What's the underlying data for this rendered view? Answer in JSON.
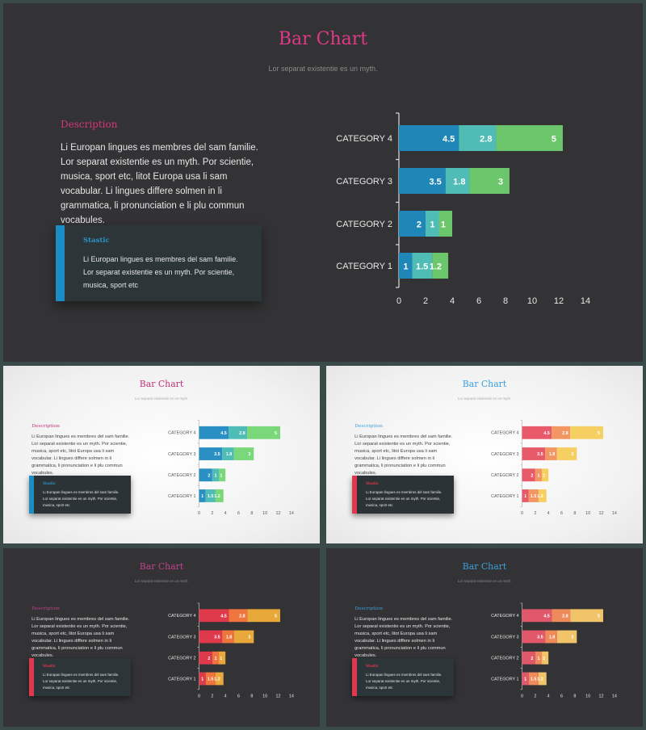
{
  "slides": [
    {
      "id": "main",
      "theme": "dark",
      "title": "Bar Chart",
      "subtitle": "Lor separat existentie es un myth.",
      "description_title": "Description",
      "description": "Li Europan lingues es membres del sam familie. Lor separat existentie es un myth. Por scientie, musica, sport etc, litot Europa usa li sam vocabular. Li lingues differe solmen in li grammatica, li pronunciation e li plu commun vocabules.",
      "stat_title": "Stastic",
      "stat_body": "Li Europan lingues es membres del sam familie. Lor separat existentie es un myth. Por scientie, musica, sport etc",
      "colors": {
        "title": "#e0388a",
        "desc_title": "#d8357f",
        "stat_title": "#2b93c6",
        "accent": "#1b8cc4",
        "series": [
          "#1f87b8",
          "#4fbcb5",
          "#6cc76c"
        ]
      }
    },
    {
      "id": "light-teal",
      "theme": "light",
      "title": "Bar Chart",
      "subtitle": "Lor separat existentie es un myth.",
      "description_title": "Description",
      "description": "Li Europan lingues es membres del sam familie. Lor separat existentie es un myth. Por scientie, musica, sport etc, litot Europa usa li sam vocabular. Li lingues differe solmen in li grammatica, li pronunciation e li plu commun vocabules.",
      "stat_title": "Stastic",
      "stat_body": "Li Europan lingues es membres del sam familie. Lor separat existentie es un myth. Por scientie, musica, sport etc",
      "colors": {
        "title": "#c2347e",
        "desc_title": "#c2347e",
        "stat_title": "#2b93c6",
        "accent": "#1b8cc4",
        "series": [
          "#2a8fc2",
          "#4fbcb5",
          "#7ad77a"
        ]
      }
    },
    {
      "id": "light-red",
      "theme": "light",
      "title": "Bar Chart",
      "subtitle": "Lor separat existentie es un myth.",
      "description_title": "Description",
      "description": "Li Europan lingues es membres del sam familie. Lor separat existentie es un myth. Por scientie, musica, sport etc, litot Europa usa li sam vocabular. Li lingues differe solmen in li grammatica, li pronunciation e li plu commun vocabules.",
      "stat_title": "Stastic",
      "stat_body": "Li Europan lingues es membres del sam familie. Lor separat existentie es un myth. Por scientie, musica, sport etc",
      "colors": {
        "title": "#3aa0d8",
        "desc_title": "#3aa0d8",
        "stat_title": "#e0384f",
        "accent": "#e0384f",
        "series": [
          "#e85a6a",
          "#f29664",
          "#f6cf63"
        ]
      }
    },
    {
      "id": "dark-red",
      "theme": "dark",
      "title": "Bar Chart",
      "subtitle": "Lor separat existentie es un myth.",
      "description_title": "Description",
      "description": "Li Europan lingues es membres del sam familie. Lor separat existentie es un myth. Por scientie, musica, sport etc, litot Europa usa li sam vocabular. Li lingues differe solmen in li grammatica, li pronunciation e li plu commun vocabules.",
      "stat_title": "Stastic",
      "stat_body": "Li Europan lingues es membres del sam familie. Lor separat existentie es un myth. Por scientie, musica, sport etc",
      "colors": {
        "title": "#c0408a",
        "desc_title": "#c0408a",
        "stat_title": "#e0384f",
        "accent": "#e0384f",
        "series": [
          "#de3a4c",
          "#f0743e",
          "#e8a83a"
        ]
      }
    },
    {
      "id": "dark-red-2",
      "theme": "dark",
      "title": "Bar Chart",
      "subtitle": "Lor separat existentie es un myth.",
      "description_title": "Description",
      "description": "Li Europan lingues es membres del sam familie. Lor separat existentie es un myth. Por scientie, musica, sport etc, litot Europa usa li sam vocabular. Li lingues differe solmen in li grammatica, li pronunciation e li plu commun vocabules.",
      "stat_title": "Stastic",
      "stat_body": "Li Europan lingues es membres del sam familie. Lor separat existentie es un myth. Por scientie, musica, sport etc",
      "colors": {
        "title": "#3aa0d8",
        "desc_title": "#3aa0d8",
        "stat_title": "#e0384f",
        "accent": "#e0384f",
        "series": [
          "#e0586a",
          "#ef8a5c",
          "#f2c46a"
        ]
      }
    }
  ],
  "chart_data": {
    "type": "bar",
    "orientation": "horizontal",
    "stacked": true,
    "categories": [
      "CATEGORY 1",
      "CATEGORY 2",
      "CATEGORY 3",
      "CATEGORY 4"
    ],
    "series": [
      {
        "values": [
          1,
          2,
          3.5,
          4.5
        ]
      },
      {
        "values": [
          1.5,
          1,
          1.8,
          2.8
        ]
      },
      {
        "values": [
          1.2,
          1,
          3,
          5
        ]
      }
    ],
    "x_ticks": [
      "0",
      "2",
      "4",
      "6",
      "8",
      "10",
      "12",
      "14"
    ],
    "xlim": [
      0,
      14
    ],
    "grid": false,
    "legend": "none"
  }
}
